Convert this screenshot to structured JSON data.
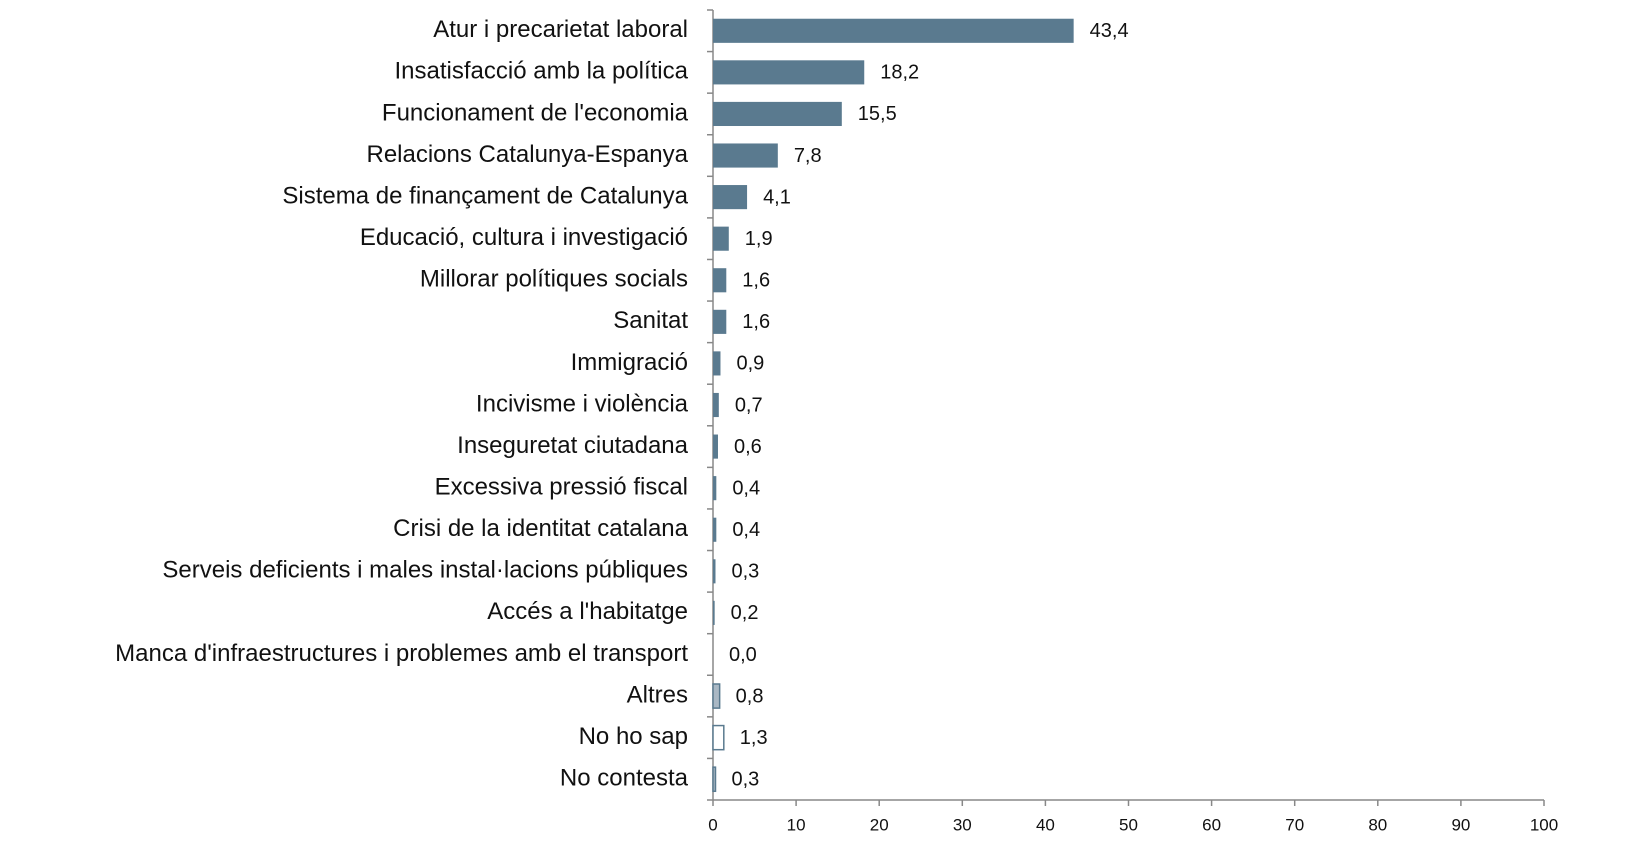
{
  "chart_data": {
    "type": "barh",
    "categories": [
      "Atur i precarietat laboral",
      "Insatisfacció amb la política",
      "Funcionament de l'economia",
      "Relacions Catalunya-Espanya",
      "Sistema de finançament de Catalunya",
      "Educació, cultura i investigació",
      "Millorar polítiques socials",
      "Sanitat",
      "Immigració",
      "Incivisme i violència",
      "Inseguretat ciutadana",
      "Excessiva pressió fiscal",
      "Crisi de la identitat catalana",
      "Serveis deficients i males instal·lacions públiques",
      "Accés a l'habitatge",
      "Manca d'infraestructures i problemes amb el transport",
      "Altres",
      "No ho sap",
      "No contesta"
    ],
    "values": [
      43.4,
      18.2,
      15.5,
      7.8,
      4.1,
      1.9,
      1.6,
      1.6,
      0.9,
      0.7,
      0.6,
      0.4,
      0.4,
      0.3,
      0.2,
      0.0,
      0.8,
      1.3,
      0.3
    ],
    "value_labels": [
      "43,4",
      "18,2",
      "15,5",
      "7,8",
      "4,1",
      "1,9",
      "1,6",
      "1,6",
      "0,9",
      "0,7",
      "0,6",
      "0,4",
      "0,4",
      "0,3",
      "0,2",
      "0,0",
      "0,8",
      "1,3",
      "0,3"
    ],
    "colors": [
      "#5a7a8f",
      "#5a7a8f",
      "#5a7a8f",
      "#5a7a8f",
      "#5a7a8f",
      "#5a7a8f",
      "#5a7a8f",
      "#5a7a8f",
      "#5a7a8f",
      "#5a7a8f",
      "#5a7a8f",
      "#5a7a8f",
      "#5a7a8f",
      "#5a7a8f",
      "#5a7a8f",
      "#5a7a8f",
      "#aab8c4",
      "#ffffff",
      "#aab8c4"
    ],
    "edgecolor": "#5a7a8f",
    "xlim": [
      0,
      100
    ],
    "xticks": [
      0,
      10,
      20,
      30,
      40,
      50,
      60,
      70,
      80,
      90,
      100
    ],
    "grid": false
  }
}
